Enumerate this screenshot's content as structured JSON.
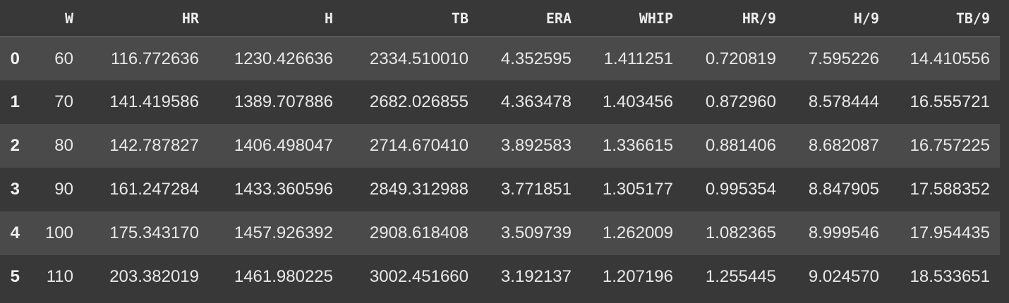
{
  "table": {
    "index_header": "",
    "columns": [
      "W",
      "HR",
      "H",
      "TB",
      "ERA",
      "WHIP",
      "HR/9",
      "H/9",
      "TB/9"
    ],
    "rows": [
      {
        "index": "0",
        "cells": [
          "60",
          "116.772636",
          "1230.426636",
          "2334.510010",
          "4.352595",
          "1.411251",
          "0.720819",
          "7.595226",
          "14.410556"
        ]
      },
      {
        "index": "1",
        "cells": [
          "70",
          "141.419586",
          "1389.707886",
          "2682.026855",
          "4.363478",
          "1.403456",
          "0.872960",
          "8.578444",
          "16.555721"
        ]
      },
      {
        "index": "2",
        "cells": [
          "80",
          "142.787827",
          "1406.498047",
          "2714.670410",
          "3.892583",
          "1.336615",
          "0.881406",
          "8.682087",
          "16.757225"
        ]
      },
      {
        "index": "3",
        "cells": [
          "90",
          "161.247284",
          "1433.360596",
          "2849.312988",
          "3.771851",
          "1.305177",
          "0.995354",
          "8.847905",
          "17.588352"
        ]
      },
      {
        "index": "4",
        "cells": [
          "100",
          "175.343170",
          "1457.926392",
          "2908.618408",
          "3.509739",
          "1.262009",
          "1.082365",
          "8.999546",
          "17.954435"
        ]
      },
      {
        "index": "5",
        "cells": [
          "110",
          "203.382019",
          "1461.980225",
          "3002.451660",
          "3.192137",
          "1.207196",
          "1.255445",
          "9.024570",
          "18.533651"
        ]
      }
    ]
  },
  "colors": {
    "background": "#383838",
    "row_stripe": "#4a4a4a",
    "text": "#e8e8e8"
  }
}
